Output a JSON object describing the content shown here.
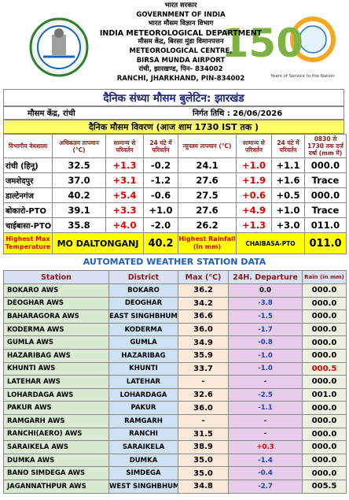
{
  "header": {
    "lines": [
      "भारत सरकार",
      "GOVERNMENT OF INDIA",
      "भारत मौसम विज्ञान विभाग",
      "INDIA METEOROLOGICAL DEPARTMENT",
      "मौसम केंद्र, बिरसा मुंडा विमानपत्तन",
      "METEOROLOGICAL CENTRE,",
      "BIRSA MUNDA AIRPORT",
      "रांची, झारखण्ड, पिन- 834002",
      "RANCHI, JHARKHAND, PIN-834002"
    ]
  },
  "logo_150": {
    "number": "150",
    "tagline": "Years of Service to the Nation"
  },
  "bulletin": {
    "title": "दैनिक संध्या मौसम बुलेटिन: झारखंड",
    "centre": "मौसम केंद्र, रांची",
    "issue_date": "निर्गत तिथि : 26/06/2026",
    "subtitle": "दैनिक मौसम विवरण (आज शाम 1730 IST तक )"
  },
  "daily_table": {
    "headers": [
      "विभागीय वेधशाला",
      "अधिकतम तापमान (°C)",
      "सामान्य से परिवर्तन",
      "24 घंटे में परिवर्तन",
      "न्यूनतम तापमान (°C)",
      "सामान्य से परिवर्तन",
      "24 घंटे में परिवर्तन",
      "0830 से 1730 तक दर्ज वर्षा (mm में)"
    ],
    "rows": [
      [
        "रांची (हिनू)",
        "32.5",
        "+1.3",
        "-0.2",
        "24.1",
        "+1.0",
        "+1.1",
        "000.0"
      ],
      [
        "जमशेदपुर",
        "37.0",
        "+3.1",
        "-1.2",
        "27.6",
        "+1.9",
        "+1.6",
        "Trace"
      ],
      [
        "डाल्टेनगंज",
        "40.2",
        "+5.4",
        "-0.6",
        "27.5",
        "+0.6",
        "+0.5",
        "000.0"
      ],
      [
        "बोकारो-PTO",
        "39.1",
        "+3.3",
        "+1.0",
        "27.6",
        "+4.9",
        "+1.0",
        "Trace"
      ],
      [
        "चाईबासा-PTO",
        "35.8",
        "+4.0",
        "-2.0",
        "26.2",
        "+1.3",
        "+3.0",
        "011.0"
      ]
    ],
    "highlights": [
      "Highest Max Temperature",
      "MO DALTONGANJ",
      "40.2",
      "Highest Rainfall (in mm)",
      "CHAIBASA-PTO",
      "011.0"
    ]
  },
  "aws": {
    "title": "AUTOMATED WEATHER STATION DATA",
    "headers": [
      "Station",
      "District",
      "Max (°C)",
      "24H. Departure",
      "Rain (in mm)"
    ],
    "rows": [
      {
        "station": "BOKARO AWS",
        "district": "BOKARO",
        "max": "36.2",
        "departure": "0.0",
        "rain": "000.0"
      },
      {
        "station": "DEOGHAR AWS",
        "district": "DEOGHAR",
        "max": "34.2",
        "departure": "-3.8",
        "rain": "000.0"
      },
      {
        "station": "BAHARAGORA AWS",
        "district": "EAST SINGHBHUM",
        "max": "36.6",
        "departure": "-1.5",
        "rain": "000.0"
      },
      {
        "station": "KODERMA AWS",
        "district": "KODERMA",
        "max": "36.0",
        "departure": "-1.7",
        "rain": "000.0"
      },
      {
        "station": "GUMLA AWS",
        "district": "GUMLA",
        "max": "34.9",
        "departure": "-0.8",
        "rain": "000.0"
      },
      {
        "station": "HAZARIBAG AWS",
        "district": "HAZARIBAG",
        "max": "35.9",
        "departure": "-1.0",
        "rain": "000.0"
      },
      {
        "station": "KHUNTI AWS",
        "district": "KHUNTI",
        "max": "33.7",
        "departure": "-1.0",
        "rain": "000.5",
        "rain_color": "#e00000"
      },
      {
        "station": "LATEHAR AWS",
        "district": "LATEHAR",
        "max": "-",
        "departure": "-",
        "rain": "000.0"
      },
      {
        "station": "LOHARDAGA AWS",
        "district": "LOHARDAGA",
        "max": "32.6",
        "departure": "-2.5",
        "rain": "001.0"
      },
      {
        "station": "PAKUR AWS",
        "district": "PAKUR",
        "max": "36.0",
        "departure": "-1.1",
        "rain": "000.0"
      },
      {
        "station": "RAMGARH AWS",
        "district": "RAMGARH",
        "max": "-",
        "departure": "-",
        "rain": "000.0"
      },
      {
        "station": "RANCHI(AERO) AWS",
        "district": "RANCHI",
        "max": "31.5",
        "departure": "-",
        "rain": "000.0"
      },
      {
        "station": "SARAIKELA AWS",
        "district": "SARAIKELA",
        "max": "38.9",
        "departure": "+0.3",
        "rain": "000.0"
      },
      {
        "station": "DUMKA AWS",
        "district": "DUMKA",
        "max": "35.0",
        "departure": "-1.4",
        "rain": "000.0"
      },
      {
        "station": "BANO SIMDEGA AWS",
        "district": "SIMDEGA",
        "max": "35.0",
        "departure": "-0.4",
        "rain": "000.0"
      },
      {
        "station": "JAGANNATHPUR AWS",
        "district": "WEST SINGHBHUM",
        "max": "34.8",
        "departure": "-2.7",
        "rain": "005.5"
      }
    ]
  }
}
